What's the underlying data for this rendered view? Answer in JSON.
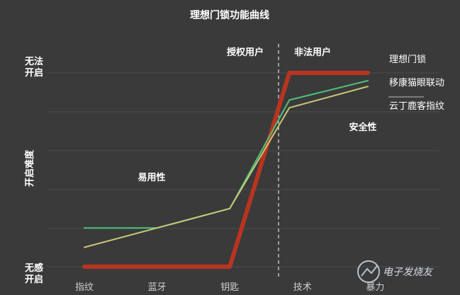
{
  "chart_data": {
    "type": "line",
    "title": "理想门锁功能曲线",
    "ylabel": "开启难度",
    "xlabel": "",
    "categories": [
      "指纹",
      "蓝牙",
      "钥匙",
      "技术",
      "暴力"
    ],
    "y_levels": {
      "top": "无法\n开启",
      "bottom": "无感\n开启"
    },
    "ylim": [
      0,
      10
    ],
    "grid": true,
    "legend": "right, inline labels",
    "series": [
      {
        "name": "理想门锁",
        "color": "#b83420",
        "x": [
          0,
          2,
          2.82,
          3.9
        ],
        "y": [
          0,
          0,
          10,
          10
        ]
      },
      {
        "name": "移康猫眼联动",
        "color": "#4fc27a",
        "x": [
          0,
          1,
          2,
          2.82,
          3.9
        ],
        "y": [
          2,
          2,
          3,
          8.6,
          9.6
        ]
      },
      {
        "name": "云丁鹿客指纹",
        "color": "#c9c878",
        "x": [
          0,
          1,
          2,
          2.82,
          3.9
        ],
        "y": [
          1,
          2,
          3,
          8.2,
          9.3
        ]
      }
    ],
    "annotations": [
      {
        "text": "授权用户",
        "role": "region-left"
      },
      {
        "text": "非法用户",
        "role": "region-right"
      },
      {
        "text": "易用性",
        "role": "region-label"
      },
      {
        "text": "安全性",
        "role": "region-label"
      }
    ]
  },
  "watermark": "电子发烧友",
  "colors": {
    "background": "#3a3a3a",
    "grid": "#4c4c4c",
    "divider": "#dddddd",
    "text": "#ffffff",
    "tick": "#cfcfcf"
  }
}
